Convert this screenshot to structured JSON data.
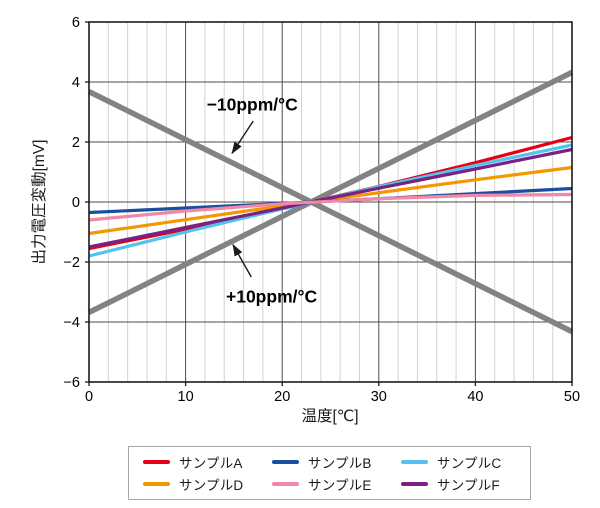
{
  "chart_data": {
    "type": "line",
    "title": "",
    "xlabel": "温度[℃]",
    "ylabel": "出力電圧変動[mV]",
    "xlim": [
      0,
      50
    ],
    "ylim": [
      -6,
      6
    ],
    "x_ticks": [
      0,
      10,
      20,
      30,
      40,
      50
    ],
    "y_ticks": [
      -6,
      -4,
      -2,
      0,
      2,
      4,
      6
    ],
    "x_minor_step": 2,
    "grid": true,
    "legend_position": "bottom",
    "x": [
      0,
      10,
      20,
      30,
      40,
      50
    ],
    "series": [
      {
        "name": "サンプルA",
        "color": "#e60014",
        "values": [
          -1.55,
          -0.91,
          -0.22,
          0.52,
          1.31,
          2.15
        ]
      },
      {
        "name": "サンプルB",
        "color": "#1a4f9e",
        "values": [
          -0.35,
          -0.2,
          -0.05,
          0.11,
          0.28,
          0.45
        ]
      },
      {
        "name": "サンプルC",
        "color": "#52c3f1",
        "values": [
          -1.8,
          -1.0,
          -0.23,
          0.51,
          1.22,
          1.9
        ]
      },
      {
        "name": "サンプルD",
        "color": "#f39800",
        "values": [
          -1.05,
          -0.59,
          -0.13,
          0.31,
          0.74,
          1.15
        ]
      },
      {
        "name": "サンプルE",
        "color": "#f287a6",
        "values": [
          -0.6,
          -0.3,
          -0.06,
          0.11,
          0.22,
          0.25
        ]
      },
      {
        "name": "サンプルF",
        "color": "#7a2182",
        "values": [
          -1.5,
          -0.85,
          -0.2,
          0.46,
          1.1,
          1.75
        ]
      }
    ],
    "reference_lines": [
      {
        "name": "minus-10ppm",
        "label": "−10ppm/°C",
        "color": "#838383",
        "values": [
          3.68,
          2.08,
          0.48,
          -1.12,
          -2.72,
          -4.32
        ]
      },
      {
        "name": "plus-10ppm",
        "label": "+10ppm/°C",
        "color": "#838383",
        "values": [
          -3.68,
          -2.08,
          -0.48,
          1.12,
          2.72,
          4.32
        ]
      }
    ],
    "annotations": [
      {
        "text": "−10ppm/°C",
        "text_x": 16.9,
        "text_y": 3.25,
        "arrow_from_x": 17.0,
        "arrow_from_y": 2.7,
        "arrow_to_x": 14.8,
        "arrow_to_y": 1.62
      },
      {
        "text": "+10ppm/°C",
        "text_x": 18.9,
        "text_y": -3.15,
        "arrow_from_x": 16.8,
        "arrow_from_y": -2.5,
        "arrow_to_x": 14.9,
        "arrow_to_y": -1.42
      }
    ],
    "zero_cross_temp": 23
  },
  "legend": {
    "items": [
      {
        "label": "サンプルA",
        "color": "#e60014"
      },
      {
        "label": "サンプルB",
        "color": "#1a4f9e"
      },
      {
        "label": "サンプルC",
        "color": "#52c3f1"
      },
      {
        "label": "サンプルD",
        "color": "#f39800"
      },
      {
        "label": "サンプルE",
        "color": "#f287a6"
      },
      {
        "label": "サンプルF",
        "color": "#7a2182"
      }
    ]
  }
}
